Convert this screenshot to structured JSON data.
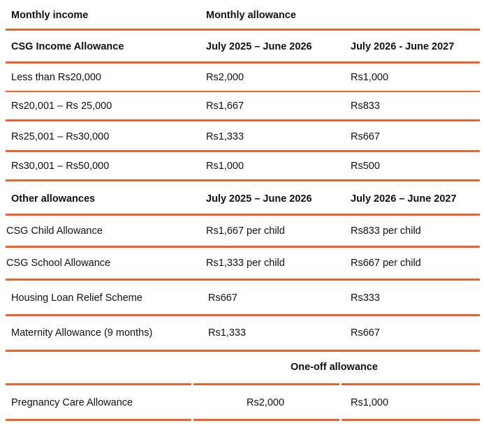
{
  "header": {
    "col1": "Monthly income",
    "col2": "Monthly allowance"
  },
  "income": {
    "title": "CSG Income Allowance",
    "period1": "July 2025 – June 2026",
    "period2": "July 2026 - June 2027",
    "rows": [
      {
        "range": "Less than Rs20,000",
        "p1": "Rs2,000",
        "p2": "Rs1,000"
      },
      {
        "range": "Rs20,001 – Rs 25,000",
        "p1": "Rs1,667",
        "p2": "Rs833"
      },
      {
        "range": "Rs25,001 – Rs30,000",
        "p1": "Rs1,333",
        "p2": "Rs667"
      },
      {
        "range": "Rs30,001 – Rs50,000",
        "p1": "Rs1,000",
        "p2": "Rs500"
      }
    ]
  },
  "other": {
    "title": "Other allowances",
    "period1": "July 2025 – June 2026",
    "period2": "July 2026 – June 2027",
    "rows": [
      {
        "name": "CSG Child Allowance",
        "p1": "Rs1,667 per child",
        "p2": "Rs833 per child"
      },
      {
        "name": "CSG School Allowance",
        "p1": "Rs1,333 per child",
        "p2": "Rs667 per child"
      },
      {
        "name": "Housing Loan Relief Scheme",
        "p1": "Rs667",
        "p2": "Rs333"
      },
      {
        "name": "Maternity Allowance (9 months)",
        "p1": "Rs1,333",
        "p2": "Rs667"
      }
    ]
  },
  "oneoff": {
    "title": "One-off allowance",
    "rows": [
      {
        "name": "Pregnancy Care Allowance",
        "p1": "Rs2,000",
        "p2": "Rs1,000"
      }
    ]
  },
  "colors": {
    "rule": "#e8642c"
  }
}
